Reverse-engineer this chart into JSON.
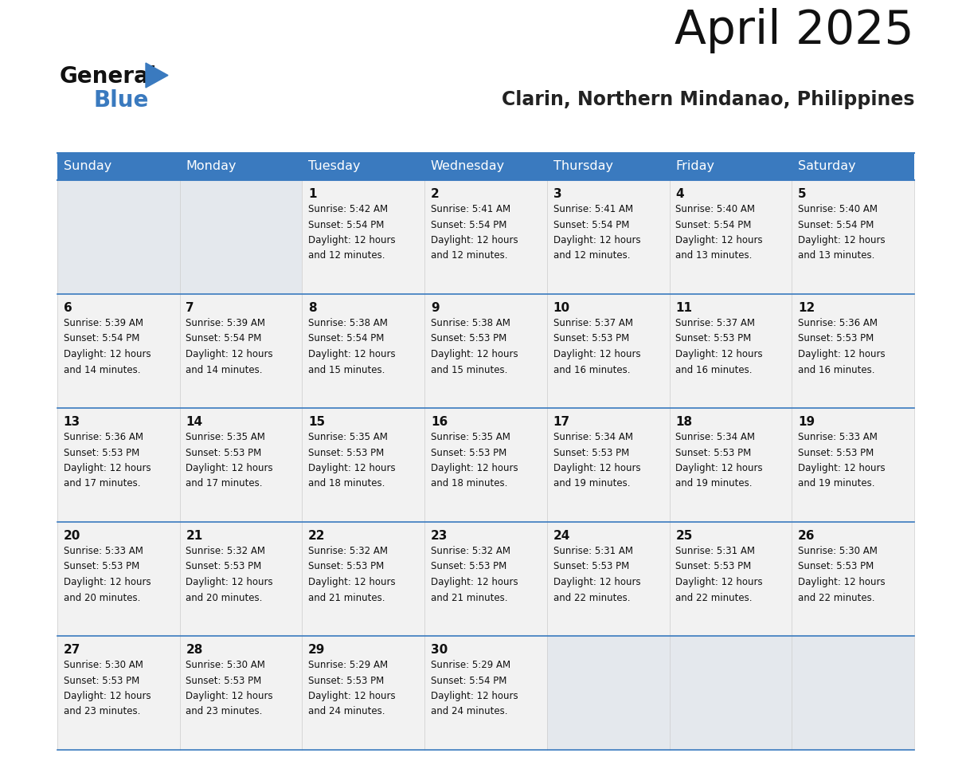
{
  "title": "April 2025",
  "subtitle": "Clarin, Northern Mindanao, Philippines",
  "header_bg": "#3a7abf",
  "header_text_color": "#ffffff",
  "border_color": "#3a7abf",
  "row_line_color": "#3a7abf",
  "cell_bg_filled": "#f2f2f2",
  "cell_bg_empty": "#e4e8ed",
  "day_headers": [
    "Sunday",
    "Monday",
    "Tuesday",
    "Wednesday",
    "Thursday",
    "Friday",
    "Saturday"
  ],
  "days": [
    {
      "day": 1,
      "col": 2,
      "row": 0,
      "sunrise": "5:42 AM",
      "sunset": "5:54 PM",
      "daylight_line1": "12 hours",
      "daylight_line2": "and 12 minutes."
    },
    {
      "day": 2,
      "col": 3,
      "row": 0,
      "sunrise": "5:41 AM",
      "sunset": "5:54 PM",
      "daylight_line1": "12 hours",
      "daylight_line2": "and 12 minutes."
    },
    {
      "day": 3,
      "col": 4,
      "row": 0,
      "sunrise": "5:41 AM",
      "sunset": "5:54 PM",
      "daylight_line1": "12 hours",
      "daylight_line2": "and 12 minutes."
    },
    {
      "day": 4,
      "col": 5,
      "row": 0,
      "sunrise": "5:40 AM",
      "sunset": "5:54 PM",
      "daylight_line1": "12 hours",
      "daylight_line2": "and 13 minutes."
    },
    {
      "day": 5,
      "col": 6,
      "row": 0,
      "sunrise": "5:40 AM",
      "sunset": "5:54 PM",
      "daylight_line1": "12 hours",
      "daylight_line2": "and 13 minutes."
    },
    {
      "day": 6,
      "col": 0,
      "row": 1,
      "sunrise": "5:39 AM",
      "sunset": "5:54 PM",
      "daylight_line1": "12 hours",
      "daylight_line2": "and 14 minutes."
    },
    {
      "day": 7,
      "col": 1,
      "row": 1,
      "sunrise": "5:39 AM",
      "sunset": "5:54 PM",
      "daylight_line1": "12 hours",
      "daylight_line2": "and 14 minutes."
    },
    {
      "day": 8,
      "col": 2,
      "row": 1,
      "sunrise": "5:38 AM",
      "sunset": "5:54 PM",
      "daylight_line1": "12 hours",
      "daylight_line2": "and 15 minutes."
    },
    {
      "day": 9,
      "col": 3,
      "row": 1,
      "sunrise": "5:38 AM",
      "sunset": "5:53 PM",
      "daylight_line1": "12 hours",
      "daylight_line2": "and 15 minutes."
    },
    {
      "day": 10,
      "col": 4,
      "row": 1,
      "sunrise": "5:37 AM",
      "sunset": "5:53 PM",
      "daylight_line1": "12 hours",
      "daylight_line2": "and 16 minutes."
    },
    {
      "day": 11,
      "col": 5,
      "row": 1,
      "sunrise": "5:37 AM",
      "sunset": "5:53 PM",
      "daylight_line1": "12 hours",
      "daylight_line2": "and 16 minutes."
    },
    {
      "day": 12,
      "col": 6,
      "row": 1,
      "sunrise": "5:36 AM",
      "sunset": "5:53 PM",
      "daylight_line1": "12 hours",
      "daylight_line2": "and 16 minutes."
    },
    {
      "day": 13,
      "col": 0,
      "row": 2,
      "sunrise": "5:36 AM",
      "sunset": "5:53 PM",
      "daylight_line1": "12 hours",
      "daylight_line2": "and 17 minutes."
    },
    {
      "day": 14,
      "col": 1,
      "row": 2,
      "sunrise": "5:35 AM",
      "sunset": "5:53 PM",
      "daylight_line1": "12 hours",
      "daylight_line2": "and 17 minutes."
    },
    {
      "day": 15,
      "col": 2,
      "row": 2,
      "sunrise": "5:35 AM",
      "sunset": "5:53 PM",
      "daylight_line1": "12 hours",
      "daylight_line2": "and 18 minutes."
    },
    {
      "day": 16,
      "col": 3,
      "row": 2,
      "sunrise": "5:35 AM",
      "sunset": "5:53 PM",
      "daylight_line1": "12 hours",
      "daylight_line2": "and 18 minutes."
    },
    {
      "day": 17,
      "col": 4,
      "row": 2,
      "sunrise": "5:34 AM",
      "sunset": "5:53 PM",
      "daylight_line1": "12 hours",
      "daylight_line2": "and 19 minutes."
    },
    {
      "day": 18,
      "col": 5,
      "row": 2,
      "sunrise": "5:34 AM",
      "sunset": "5:53 PM",
      "daylight_line1": "12 hours",
      "daylight_line2": "and 19 minutes."
    },
    {
      "day": 19,
      "col": 6,
      "row": 2,
      "sunrise": "5:33 AM",
      "sunset": "5:53 PM",
      "daylight_line1": "12 hours",
      "daylight_line2": "and 19 minutes."
    },
    {
      "day": 20,
      "col": 0,
      "row": 3,
      "sunrise": "5:33 AM",
      "sunset": "5:53 PM",
      "daylight_line1": "12 hours",
      "daylight_line2": "and 20 minutes."
    },
    {
      "day": 21,
      "col": 1,
      "row": 3,
      "sunrise": "5:32 AM",
      "sunset": "5:53 PM",
      "daylight_line1": "12 hours",
      "daylight_line2": "and 20 minutes."
    },
    {
      "day": 22,
      "col": 2,
      "row": 3,
      "sunrise": "5:32 AM",
      "sunset": "5:53 PM",
      "daylight_line1": "12 hours",
      "daylight_line2": "and 21 minutes."
    },
    {
      "day": 23,
      "col": 3,
      "row": 3,
      "sunrise": "5:32 AM",
      "sunset": "5:53 PM",
      "daylight_line1": "12 hours",
      "daylight_line2": "and 21 minutes."
    },
    {
      "day": 24,
      "col": 4,
      "row": 3,
      "sunrise": "5:31 AM",
      "sunset": "5:53 PM",
      "daylight_line1": "12 hours",
      "daylight_line2": "and 22 minutes."
    },
    {
      "day": 25,
      "col": 5,
      "row": 3,
      "sunrise": "5:31 AM",
      "sunset": "5:53 PM",
      "daylight_line1": "12 hours",
      "daylight_line2": "and 22 minutes."
    },
    {
      "day": 26,
      "col": 6,
      "row": 3,
      "sunrise": "5:30 AM",
      "sunset": "5:53 PM",
      "daylight_line1": "12 hours",
      "daylight_line2": "and 22 minutes."
    },
    {
      "day": 27,
      "col": 0,
      "row": 4,
      "sunrise": "5:30 AM",
      "sunset": "5:53 PM",
      "daylight_line1": "12 hours",
      "daylight_line2": "and 23 minutes."
    },
    {
      "day": 28,
      "col": 1,
      "row": 4,
      "sunrise": "5:30 AM",
      "sunset": "5:53 PM",
      "daylight_line1": "12 hours",
      "daylight_line2": "and 23 minutes."
    },
    {
      "day": 29,
      "col": 2,
      "row": 4,
      "sunrise": "5:29 AM",
      "sunset": "5:53 PM",
      "daylight_line1": "12 hours",
      "daylight_line2": "and 24 minutes."
    },
    {
      "day": 30,
      "col": 3,
      "row": 4,
      "sunrise": "5:29 AM",
      "sunset": "5:54 PM",
      "daylight_line1": "12 hours",
      "daylight_line2": "and 24 minutes."
    }
  ]
}
